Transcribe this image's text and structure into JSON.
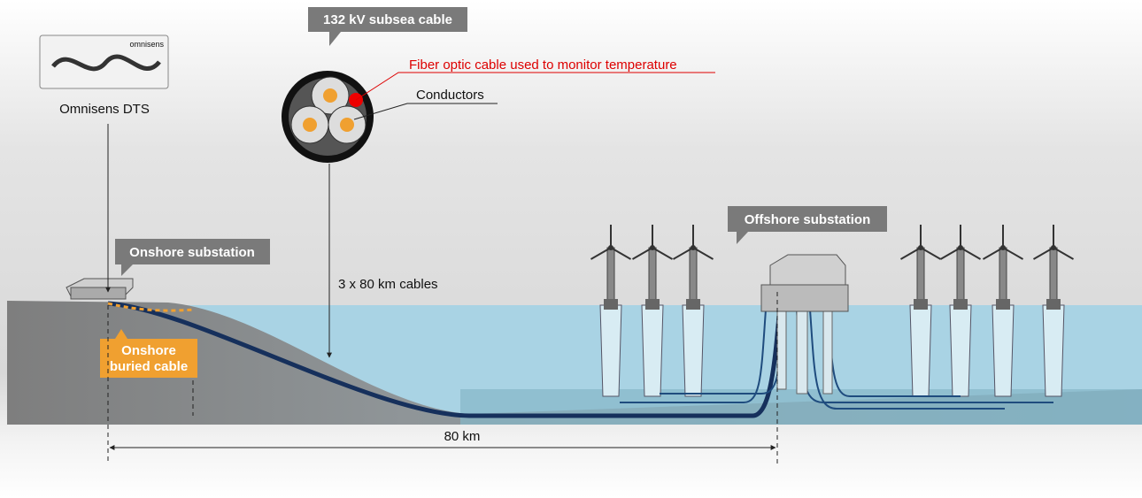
{
  "device": {
    "brand": "omnisens",
    "label": "Omnisens DTS"
  },
  "cable_cross_section": {
    "title": "132 kV subsea cable",
    "fiber_label": "Fiber optic cable used to monitor temperature",
    "conductors_label": "Conductors"
  },
  "onshore_substation": "Onshore substation",
  "offshore_substation": "Offshore substation",
  "cable_run": "3 x 80 km cables",
  "buried_cable": [
    "Onshore",
    "buried cable"
  ],
  "distance": "80 km"
}
